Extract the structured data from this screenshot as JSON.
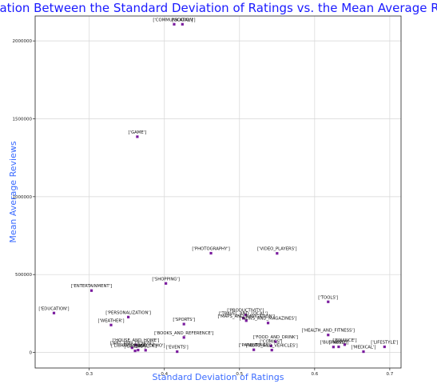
{
  "chart_data": {
    "type": "scatter",
    "title": "Correleation Between the Standard Deviation of Ratings vs. the Mean Average Reviews",
    "xlabel": "Standard Deviation of Ratings",
    "ylabel": "Mean Average Reviews",
    "xlim": [
      0.228,
      0.715
    ],
    "ylim": [
      -100000,
      2160000
    ],
    "x_ticks": [
      0.3,
      0.4,
      0.5,
      0.6,
      0.7
    ],
    "y_ticks": [
      0,
      500000,
      1000000,
      1500000,
      2000000
    ],
    "x_tick_labels": [
      "0.3",
      "0.4",
      "0.5",
      "0.6",
      "0.7"
    ],
    "y_tick_labels": [
      "0",
      "500000",
      "1000000",
      "1500000",
      "2000000"
    ],
    "grid": true,
    "marker_color": "#7a1c9e",
    "points": [
      {
        "label": "['COMMUNICATION']",
        "x": 0.413,
        "y": 2107000
      },
      {
        "label": "['SOCIAL']",
        "x": 0.424,
        "y": 2107000
      },
      {
        "label": "['GAME']",
        "x": 0.364,
        "y": 1385000
      },
      {
        "label": "['PHOTOGRAPHY']",
        "x": 0.462,
        "y": 637000
      },
      {
        "label": "['VIDEO_PLAYERS']",
        "x": 0.55,
        "y": 636000
      },
      {
        "label": "['SHOPPING']",
        "x": 0.402,
        "y": 443000
      },
      {
        "label": "['ENTERTAINMENT']",
        "x": 0.303,
        "y": 397000
      },
      {
        "label": "['TOOLS']",
        "x": 0.618,
        "y": 325000
      },
      {
        "label": "['EDUCATION']",
        "x": 0.253,
        "y": 253000
      },
      {
        "label": "['PERSONALIZATION']",
        "x": 0.352,
        "y": 227000
      },
      {
        "label": "['PRODUCTIVITY']",
        "x": 0.508,
        "y": 241000
      },
      {
        "label": "['TRAVEL_AND_LOCAL']",
        "x": 0.505,
        "y": 220000
      },
      {
        "label": "['MAPS_AND_NAVIGATION']",
        "x": 0.509,
        "y": 204000
      },
      {
        "label": "['WEATHER']",
        "x": 0.329,
        "y": 176000
      },
      {
        "label": "['SPORTS']",
        "x": 0.426,
        "y": 182000
      },
      {
        "label": "['NEWS_AND_MAGAZINES']",
        "x": 0.538,
        "y": 189000
      },
      {
        "label": "['HEALTH_AND_FITNESS']",
        "x": 0.618,
        "y": 112000
      },
      {
        "label": "['BOOKS_AND_REFERENCE']",
        "x": 0.426,
        "y": 96000
      },
      {
        "label": "['FOOD_AND_DRINK']",
        "x": 0.548,
        "y": 69000
      },
      {
        "label": "['HOUSE_AND_HOME']",
        "x": 0.362,
        "y": 48000
      },
      {
        "label": "['FINANCE']",
        "x": 0.64,
        "y": 50000
      },
      {
        "label": "['COMICS']",
        "x": 0.542,
        "y": 42000
      },
      {
        "label": "['LIFESTYLE']",
        "x": 0.693,
        "y": 36000
      },
      {
        "label": "['ART_AND_DESIGN']",
        "x": 0.357,
        "y": 30000
      },
      {
        "label": "['LIBRARIES_AND_DEMO']",
        "x": 0.365,
        "y": 15000
      },
      {
        "label": "['DATING']",
        "x": 0.361,
        "y": 10000
      },
      {
        "label": "['BEAUTY']",
        "x": 0.375,
        "y": 14000
      },
      {
        "label": "['EVENTS']",
        "x": 0.417,
        "y": 5000
      },
      {
        "label": "['PARENTING']",
        "x": 0.519,
        "y": 17000
      },
      {
        "label": "['AUTO_AND_VEHICLES']",
        "x": 0.543,
        "y": 15000
      },
      {
        "label": "['BUSINESS']",
        "x": 0.625,
        "y": 35000
      },
      {
        "label": "['FAMILY']",
        "x": 0.632,
        "y": 36000
      },
      {
        "label": "['MEDICAL']",
        "x": 0.665,
        "y": 5000
      }
    ]
  }
}
